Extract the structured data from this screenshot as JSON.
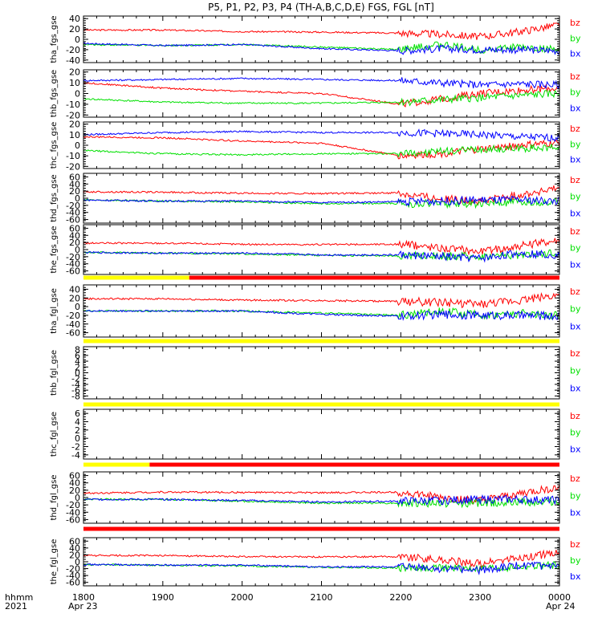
{
  "title": "P5, P1, P2, P3, P4 (TH-A,B,C,D,E) FGS, FGL [nT]",
  "colors": {
    "bx": "#0000ff",
    "by": "#00e000",
    "bz": "#ff0000",
    "flag_yellow": "#ffff00",
    "flag_red": "#ff0000"
  },
  "x_axis": {
    "tick_labels": [
      "1800",
      "1900",
      "2000",
      "2100",
      "2200",
      "2300",
      "0000"
    ],
    "date_labels": {
      "start": "Apr 23",
      "end": "Apr 24"
    },
    "corner_labels": [
      "hhmm",
      "2021"
    ]
  },
  "legend": [
    "bz",
    "by",
    "bx"
  ],
  "chart_data": [
    {
      "type": "line",
      "ylabel": "tha_fgs_gse",
      "ylim": [
        -45,
        45
      ],
      "y_ticks": [
        "40",
        "20",
        "0",
        "-20",
        "-40"
      ],
      "x_range": [
        "2021-04-23 18:00",
        "2021-04-24 00:00"
      ],
      "series": [
        {
          "name": "bz",
          "x": [
            "18:00",
            "19:00",
            "20:00",
            "21:00",
            "22:00",
            "22:30",
            "23:00",
            "23:30",
            "00:00"
          ],
          "values": [
            18,
            18,
            15,
            14,
            12,
            10,
            5,
            15,
            28
          ]
        },
        {
          "name": "by",
          "x": [
            "18:00",
            "19:00",
            "20:00",
            "21:00",
            "22:00",
            "22:30",
            "23:00",
            "23:30",
            "00:00"
          ],
          "values": [
            -10,
            -12,
            -10,
            -15,
            -20,
            -10,
            -20,
            -15,
            -20
          ]
        },
        {
          "name": "bx",
          "x": [
            "18:00",
            "19:00",
            "20:00",
            "21:00",
            "22:00",
            "22:30",
            "23:00",
            "23:30",
            "00:00"
          ],
          "values": [
            -8,
            -12,
            -10,
            -18,
            -22,
            -18,
            -20,
            -20,
            -22
          ]
        }
      ]
    },
    {
      "type": "line",
      "ylabel": "thb_fgs_gse",
      "ylim": [
        -22,
        22
      ],
      "y_ticks": [
        "20",
        "10",
        "0",
        "-10",
        "-20"
      ],
      "x_range": [
        "2021-04-23 18:00",
        "2021-04-24 00:00"
      ],
      "series": [
        {
          "name": "bz",
          "x": [
            "18:00",
            "19:00",
            "20:00",
            "21:00",
            "22:00",
            "22:30",
            "23:00",
            "23:30",
            "00:00"
          ],
          "values": [
            10,
            5,
            2,
            0,
            -10,
            -5,
            0,
            3,
            5
          ]
        },
        {
          "name": "by",
          "x": [
            "18:00",
            "19:00",
            "20:00",
            "21:00",
            "22:00",
            "22:30",
            "23:00",
            "23:30",
            "00:00"
          ],
          "values": [
            -5,
            -8,
            -9,
            -9,
            -8,
            -6,
            -4,
            -2,
            0
          ]
        },
        {
          "name": "bx",
          "x": [
            "18:00",
            "19:00",
            "20:00",
            "21:00",
            "22:00",
            "22:30",
            "23:00",
            "23:30",
            "00:00"
          ],
          "values": [
            12,
            13,
            14,
            13,
            12,
            10,
            8,
            9,
            8
          ]
        }
      ]
    },
    {
      "type": "line",
      "ylabel": "thc_fgs_gse",
      "ylim": [
        -22,
        22
      ],
      "y_ticks": [
        "20",
        "10",
        "0",
        "-10",
        "-20"
      ],
      "x_range": [
        "2021-04-23 18:00",
        "2021-04-24 00:00"
      ],
      "series": [
        {
          "name": "bz",
          "x": [
            "18:00",
            "19:00",
            "20:00",
            "21:00",
            "22:00",
            "22:30",
            "23:00",
            "23:30",
            "00:00"
          ],
          "values": [
            8,
            7,
            4,
            2,
            -10,
            -8,
            -4,
            0,
            2
          ]
        },
        {
          "name": "by",
          "x": [
            "18:00",
            "19:00",
            "20:00",
            "21:00",
            "22:00",
            "22:30",
            "23:00",
            "23:30",
            "00:00"
          ],
          "values": [
            -5,
            -8,
            -9,
            -8,
            -8,
            -6,
            -4,
            -3,
            -2
          ]
        },
        {
          "name": "bx",
          "x": [
            "18:00",
            "19:00",
            "20:00",
            "21:00",
            "22:00",
            "22:30",
            "23:00",
            "23:30",
            "00:00"
          ],
          "values": [
            10,
            12,
            13,
            12,
            12,
            11,
            10,
            8,
            7
          ]
        }
      ]
    },
    {
      "type": "line",
      "ylabel": "thd_fgs_gse",
      "ylim": [
        -70,
        70
      ],
      "y_ticks": [
        "60",
        "40",
        "20",
        "0",
        "-20",
        "-40",
        "-60"
      ],
      "x_range": [
        "2021-04-23 18:00",
        "2021-04-24 00:00"
      ],
      "series": [
        {
          "name": "bz",
          "x": [
            "18:00",
            "19:00",
            "20:00",
            "21:00",
            "22:00",
            "22:30",
            "23:00",
            "23:30",
            "00:00"
          ],
          "values": [
            18,
            17,
            14,
            13,
            15,
            0,
            -10,
            10,
            28
          ]
        },
        {
          "name": "by",
          "x": [
            "18:00",
            "19:00",
            "20:00",
            "21:00",
            "22:00",
            "22:30",
            "23:00",
            "23:30",
            "00:00"
          ],
          "values": [
            -5,
            -8,
            -10,
            -15,
            -15,
            -15,
            -15,
            -12,
            -10
          ]
        },
        {
          "name": "bx",
          "x": [
            "18:00",
            "19:00",
            "20:00",
            "21:00",
            "22:00",
            "22:30",
            "23:00",
            "23:30",
            "00:00"
          ],
          "values": [
            -5,
            -8,
            -8,
            -12,
            -10,
            -8,
            -5,
            -5,
            -8
          ]
        }
      ]
    },
    {
      "type": "line",
      "ylabel": "the_fgs_gse",
      "ylim": [
        -70,
        70
      ],
      "y_ticks": [
        "60",
        "40",
        "20",
        "0",
        "-20",
        "-40",
        "-60"
      ],
      "x_range": [
        "2021-04-23 18:00",
        "2021-04-24 00:00"
      ],
      "series": [
        {
          "name": "bz",
          "x": [
            "18:00",
            "19:00",
            "20:00",
            "21:00",
            "22:00",
            "22:30",
            "23:00",
            "23:30",
            "00:00"
          ],
          "values": [
            18,
            18,
            15,
            14,
            15,
            5,
            -5,
            10,
            28
          ]
        },
        {
          "name": "by",
          "x": [
            "18:00",
            "19:00",
            "20:00",
            "21:00",
            "22:00",
            "22:30",
            "23:00",
            "23:30",
            "00:00"
          ],
          "values": [
            -8,
            -10,
            -12,
            -16,
            -18,
            -18,
            -20,
            -15,
            -10
          ]
        },
        {
          "name": "bx",
          "x": [
            "18:00",
            "19:00",
            "20:00",
            "21:00",
            "22:00",
            "22:30",
            "23:00",
            "23:30",
            "00:00"
          ],
          "values": [
            -8,
            -10,
            -10,
            -15,
            -15,
            -20,
            -25,
            -10,
            -15
          ]
        }
      ]
    },
    {
      "type": "line",
      "ylabel": "tha_fgl_gse",
      "ylim": [
        -70,
        50
      ],
      "y_ticks": [
        "40",
        "20",
        "0",
        "-20",
        "-40",
        "-60"
      ],
      "x_range": [
        "2021-04-23 18:00",
        "2021-04-24 00:00"
      ],
      "series": [
        {
          "name": "bz",
          "x": [
            "18:00",
            "19:00",
            "20:00",
            "21:00",
            "22:00",
            "22:30",
            "23:00",
            "23:30",
            "00:00"
          ],
          "values": [
            18,
            18,
            15,
            14,
            12,
            10,
            5,
            15,
            28
          ]
        },
        {
          "name": "by",
          "x": [
            "18:00",
            "19:00",
            "20:00",
            "21:00",
            "22:00",
            "22:30",
            "23:00",
            "23:30",
            "00:00"
          ],
          "values": [
            -10,
            -10,
            -10,
            -15,
            -20,
            -10,
            -20,
            -15,
            -20
          ]
        },
        {
          "name": "bx",
          "x": [
            "18:00",
            "19:00",
            "20:00",
            "21:00",
            "22:00",
            "22:30",
            "23:00",
            "23:30",
            "00:00"
          ],
          "values": [
            -10,
            -10,
            -10,
            -18,
            -22,
            -18,
            -20,
            -20,
            -22
          ]
        }
      ]
    },
    {
      "type": "line",
      "ylabel": "thb_fgl_gse",
      "ylim": [
        -9,
        9
      ],
      "y_ticks": [
        "8",
        "6",
        "4",
        "2",
        "0",
        "-2",
        "-4",
        "-6",
        "-8"
      ],
      "x_range": [
        "2021-04-23 18:00",
        "2021-04-24 00:00"
      ],
      "series": []
    },
    {
      "type": "line",
      "ylabel": "thc_fgl_gse",
      "ylim": [
        -5,
        7
      ],
      "y_ticks": [
        "6",
        "4",
        "2",
        "0",
        "-2",
        "-4"
      ],
      "x_range": [
        "2021-04-23 18:00",
        "2021-04-24 00:00"
      ],
      "series": []
    },
    {
      "type": "line",
      "ylabel": "thd_fgl_gse",
      "ylim": [
        -70,
        70
      ],
      "y_ticks": [
        "60",
        "40",
        "20",
        "0",
        "-20",
        "-40",
        "-60"
      ],
      "x_range": [
        "2021-04-23 18:00",
        "2021-04-24 00:00"
      ],
      "series": [
        {
          "name": "bz",
          "x": [
            "18:00",
            "19:00",
            "20:00",
            "21:00",
            "22:00",
            "22:30",
            "23:00",
            "23:30",
            "00:00"
          ],
          "values": [
            12,
            15,
            14,
            13,
            15,
            0,
            -10,
            10,
            28
          ]
        },
        {
          "name": "by",
          "x": [
            "18:00",
            "19:00",
            "20:00",
            "21:00",
            "22:00",
            "22:30",
            "23:00",
            "23:30",
            "00:00"
          ],
          "values": [
            -5,
            -5,
            -10,
            -15,
            -15,
            -15,
            -15,
            -12,
            -10
          ]
        },
        {
          "name": "bx",
          "x": [
            "18:00",
            "19:00",
            "20:00",
            "21:00",
            "22:00",
            "22:30",
            "23:00",
            "23:30",
            "00:00"
          ],
          "values": [
            -5,
            -5,
            -8,
            -12,
            -10,
            -8,
            -5,
            -5,
            -8
          ]
        }
      ]
    },
    {
      "type": "line",
      "ylabel": "the_fgl_gse",
      "ylim": [
        -70,
        70
      ],
      "y_ticks": [
        "60",
        "40",
        "20",
        "0",
        "-20",
        "-40",
        "-60"
      ],
      "x_range": [
        "2021-04-23 18:00",
        "2021-04-24 00:00"
      ],
      "series": [
        {
          "name": "bz",
          "x": [
            "18:00",
            "19:00",
            "20:00",
            "21:00",
            "22:00",
            "22:30",
            "23:00",
            "23:30",
            "00:00"
          ],
          "values": [
            18,
            18,
            15,
            14,
            15,
            5,
            -5,
            10,
            28
          ]
        },
        {
          "name": "by",
          "x": [
            "18:00",
            "19:00",
            "20:00",
            "21:00",
            "22:00",
            "22:30",
            "23:00",
            "23:30",
            "00:00"
          ],
          "values": [
            -8,
            -10,
            -12,
            -16,
            -18,
            -18,
            -20,
            -15,
            -10
          ]
        },
        {
          "name": "bx",
          "x": [
            "18:00",
            "19:00",
            "20:00",
            "21:00",
            "22:00",
            "22:30",
            "23:00",
            "23:30",
            "00:00"
          ],
          "values": [
            -8,
            -10,
            -10,
            -15,
            -15,
            -20,
            -25,
            -10,
            -15
          ]
        }
      ]
    }
  ],
  "flag_bars": [
    {
      "after_panel": 4,
      "segments": [
        {
          "color": "yellow",
          "from": "18:00",
          "to": "19:20"
        },
        {
          "color": "red",
          "from": "19:20",
          "to": "00:00"
        }
      ]
    },
    {
      "after_panel": 5,
      "segments": [
        {
          "color": "yellow",
          "from": "18:00",
          "to": "00:00"
        }
      ]
    },
    {
      "after_panel": 6,
      "segments": [
        {
          "color": "yellow",
          "from": "18:00",
          "to": "00:00"
        }
      ]
    },
    {
      "after_panel": 7,
      "segments": [
        {
          "color": "yellow",
          "from": "18:00",
          "to": "18:50"
        },
        {
          "color": "red",
          "from": "18:50",
          "to": "00:00"
        }
      ]
    },
    {
      "after_panel": 8,
      "segments": [
        {
          "color": "red",
          "from": "18:00",
          "to": "00:00"
        }
      ]
    }
  ]
}
